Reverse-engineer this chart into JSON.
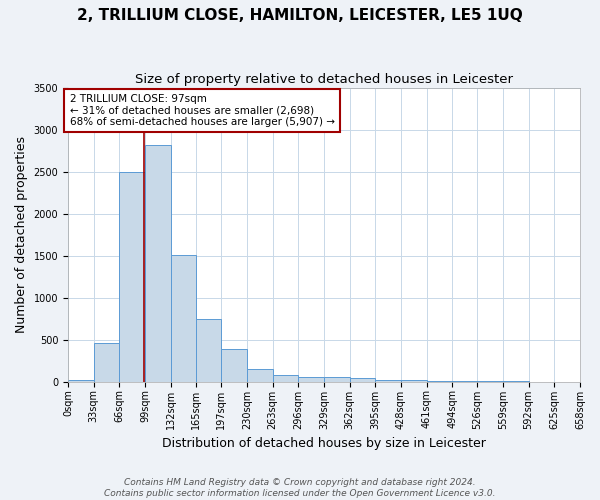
{
  "title": "2, TRILLIUM CLOSE, HAMILTON, LEICESTER, LE5 1UQ",
  "subtitle": "Size of property relative to detached houses in Leicester",
  "xlabel": "Distribution of detached houses by size in Leicester",
  "ylabel": "Number of detached properties",
  "bin_labels": [
    "0sqm",
    "33sqm",
    "66sqm",
    "99sqm",
    "132sqm",
    "165sqm",
    "197sqm",
    "230sqm",
    "263sqm",
    "296sqm",
    "329sqm",
    "362sqm",
    "395sqm",
    "428sqm",
    "461sqm",
    "494sqm",
    "526sqm",
    "559sqm",
    "592sqm",
    "625sqm",
    "658sqm"
  ],
  "bin_edges": [
    0,
    33,
    66,
    99,
    132,
    165,
    197,
    230,
    263,
    296,
    329,
    362,
    395,
    428,
    461,
    494,
    526,
    559,
    592,
    625,
    658
  ],
  "bar_heights": [
    20,
    460,
    2500,
    2820,
    1510,
    750,
    390,
    155,
    80,
    55,
    50,
    45,
    25,
    20,
    8,
    5,
    3,
    2,
    1,
    1
  ],
  "bar_color": "#c8d9e8",
  "bar_edge_color": "#5b9bd5",
  "property_size": 97,
  "vline_color": "#a00000",
  "annotation_text": "2 TRILLIUM CLOSE: 97sqm\n← 31% of detached houses are smaller (2,698)\n68% of semi-detached houses are larger (5,907) →",
  "annotation_box_color": "#a00000",
  "annotation_text_color": "#000000",
  "ylim": [
    0,
    3500
  ],
  "footer_line1": "Contains HM Land Registry data © Crown copyright and database right 2024.",
  "footer_line2": "Contains public sector information licensed under the Open Government Licence v3.0.",
  "title_fontsize": 11,
  "subtitle_fontsize": 9.5,
  "label_fontsize": 9,
  "tick_fontsize": 7,
  "annotation_fontsize": 7.5,
  "footer_fontsize": 6.5,
  "background_color": "#eef2f7",
  "plot_background_color": "#ffffff",
  "grid_color": "#c8d8e8"
}
